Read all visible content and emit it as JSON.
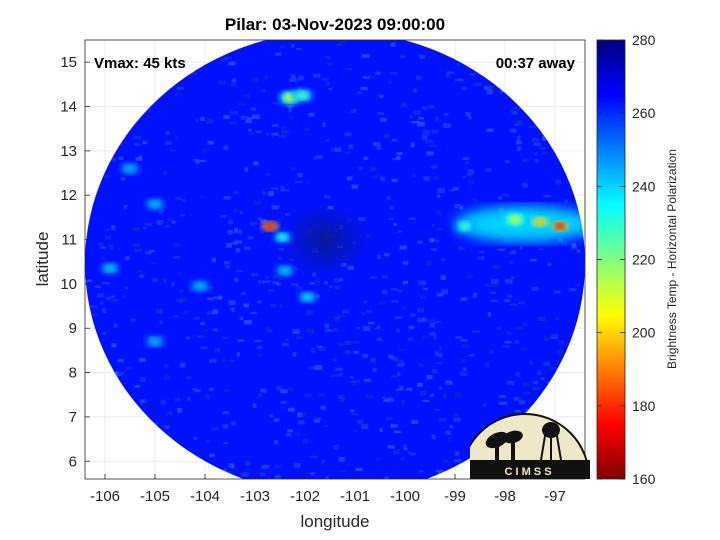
{
  "title": "Pilar: 03-Nov-2023 09:00:00",
  "annotations": {
    "vmax": "Vmax: 45 kts",
    "time_away": "00:37 away"
  },
  "logo_text": "C I M S S",
  "chart_data": {
    "type": "heatmap",
    "title": "Pilar: 03-Nov-2023 09:00:00",
    "xlabel": "longitude",
    "ylabel": "latitude",
    "xlim": [
      -106.4,
      -96.4
    ],
    "ylim": [
      5.6,
      15.5
    ],
    "xticks": [
      -106,
      -105,
      -104,
      -103,
      -102,
      -101,
      -100,
      -99,
      -98,
      -97
    ],
    "yticks": [
      6,
      7,
      8,
      9,
      10,
      11,
      12,
      13,
      14,
      15
    ],
    "grid": true,
    "colorbar": {
      "label": "Brightness Temp - Horizontal Polarization",
      "range": [
        160,
        280
      ],
      "ticks": [
        160,
        180,
        200,
        220,
        240,
        260,
        280
      ]
    },
    "swath": {
      "center_lon": -101.3,
      "center_lat": 10.5,
      "background_value": 263
    },
    "features": [
      {
        "lon": -102.7,
        "lat": 11.3,
        "value": 178
      },
      {
        "lon": -102.45,
        "lat": 11.05,
        "value": 232
      },
      {
        "lon": -102.3,
        "lat": 14.2,
        "value": 215
      },
      {
        "lon": -102.05,
        "lat": 14.25,
        "value": 228
      },
      {
        "lon": -97.8,
        "lat": 11.45,
        "value": 215
      },
      {
        "lon": -97.3,
        "lat": 11.4,
        "value": 196
      },
      {
        "lon": -96.9,
        "lat": 11.3,
        "value": 178
      },
      {
        "lon": -98.8,
        "lat": 11.3,
        "value": 230
      },
      {
        "lon": -101.95,
        "lat": 9.7,
        "value": 240
      },
      {
        "lon": -102.4,
        "lat": 10.3,
        "value": 243
      },
      {
        "lon": -104.1,
        "lat": 9.95,
        "value": 245
      },
      {
        "lon": -105.9,
        "lat": 10.35,
        "value": 242
      },
      {
        "lon": -105.0,
        "lat": 8.7,
        "value": 245
      },
      {
        "lon": -105.5,
        "lat": 12.6,
        "value": 245
      },
      {
        "lon": -105.0,
        "lat": 11.8,
        "value": 244
      }
    ]
  }
}
